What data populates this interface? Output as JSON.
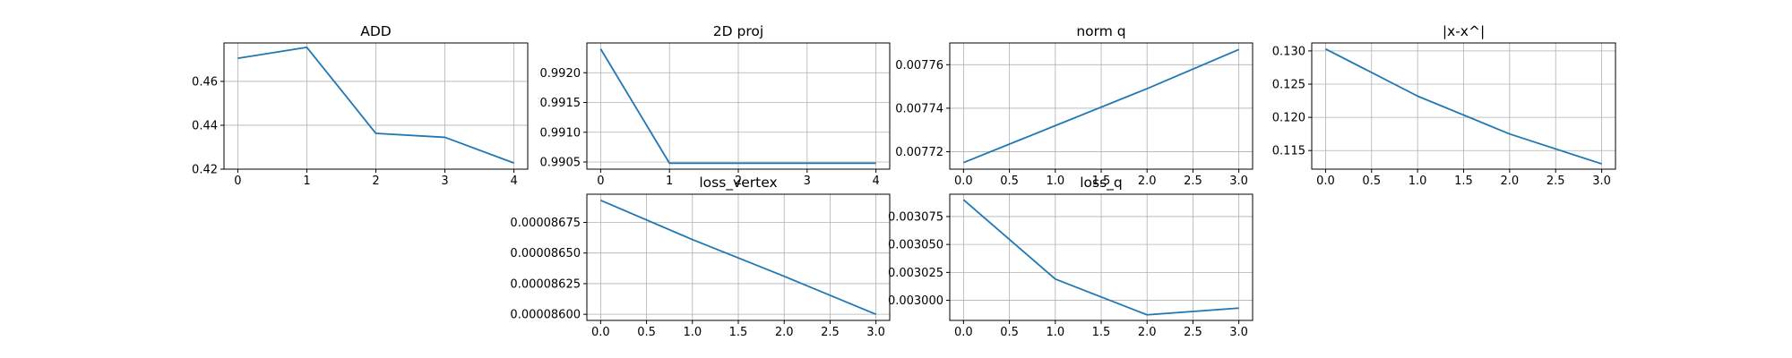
{
  "chart_data": [
    {
      "type": "line",
      "title": "ADD",
      "xlabel": "",
      "ylabel": "",
      "x": [
        0,
        1,
        2,
        3,
        4
      ],
      "series": [
        {
          "values": [
            0.4705,
            0.4755,
            0.4363,
            0.4345,
            0.4228
          ]
        }
      ],
      "xlim": [
        -0.2,
        4.2
      ],
      "ylim": [
        0.42,
        0.4775
      ],
      "xticks": [
        0,
        1,
        2,
        3,
        4
      ],
      "xtick_labels": [
        "0",
        "1",
        "2",
        "3",
        "4"
      ],
      "yticks": [
        0.42,
        0.44,
        0.46
      ],
      "ytick_labels": [
        "0.42",
        "0.44",
        "0.46"
      ],
      "grid": true,
      "line_color": "#1f77b4"
    },
    {
      "type": "line",
      "title": "2D proj",
      "xlabel": "",
      "ylabel": "",
      "x": [
        0,
        1,
        2,
        3,
        4
      ],
      "series": [
        {
          "values": [
            0.9924,
            0.99048,
            0.99048,
            0.99048,
            0.99048
          ]
        }
      ],
      "xlim": [
        -0.2,
        4.2
      ],
      "ylim": [
        0.99038,
        0.9925
      ],
      "xticks": [
        0,
        1,
        2,
        3,
        4
      ],
      "xtick_labels": [
        "0",
        "1",
        "2",
        "3",
        "4"
      ],
      "yticks": [
        0.9905,
        0.991,
        0.9915,
        0.992
      ],
      "ytick_labels": [
        "0.9905",
        "0.9910",
        "0.9915",
        "0.9920"
      ],
      "grid": true,
      "line_color": "#1f77b4"
    },
    {
      "type": "line",
      "title": "norm q",
      "xlabel": "",
      "ylabel": "",
      "x": [
        0,
        1,
        2,
        3
      ],
      "series": [
        {
          "values": [
            0.007715,
            0.007732,
            0.007749,
            0.007767
          ]
        }
      ],
      "xlim": [
        -0.15,
        3.15
      ],
      "ylim": [
        0.007712,
        0.00777
      ],
      "xticks": [
        0,
        0.5,
        1,
        1.5,
        2,
        2.5,
        3
      ],
      "xtick_labels": [
        "0.0",
        "0.5",
        "1.0",
        "1.5",
        "2.0",
        "2.5",
        "3.0"
      ],
      "yticks": [
        0.00772,
        0.00774,
        0.00776
      ],
      "ytick_labels": [
        "0.00772",
        "0.00774",
        "0.00776"
      ],
      "grid": true,
      "line_color": "#1f77b4"
    },
    {
      "type": "line",
      "title": "|x-x^|",
      "xlabel": "",
      "ylabel": "",
      "x": [
        0,
        1,
        2,
        3
      ],
      "series": [
        {
          "values": [
            0.1303,
            0.1232,
            0.1175,
            0.113
          ]
        }
      ],
      "xlim": [
        -0.15,
        3.15
      ],
      "ylim": [
        0.1122,
        0.1312
      ],
      "xticks": [
        0,
        0.5,
        1,
        1.5,
        2,
        2.5,
        3
      ],
      "xtick_labels": [
        "0.0",
        "0.5",
        "1.0",
        "1.5",
        "2.0",
        "2.5",
        "3.0"
      ],
      "yticks": [
        0.115,
        0.12,
        0.125,
        0.13
      ],
      "ytick_labels": [
        "0.115",
        "0.120",
        "0.125",
        "0.130"
      ],
      "grid": true,
      "line_color": "#1f77b4"
    },
    {
      "type": "line",
      "title": "loss_vertex",
      "xlabel": "",
      "ylabel": "",
      "x": [
        0,
        1,
        2,
        3
      ],
      "series": [
        {
          "values": [
            8.693e-05,
            8.661e-05,
            8.631e-05,
            8.6e-05
          ]
        }
      ],
      "xlim": [
        -0.15,
        3.15
      ],
      "ylim": [
        8.595e-05,
        8.698e-05
      ],
      "xticks": [
        0,
        0.5,
        1,
        1.5,
        2,
        2.5,
        3
      ],
      "xtick_labels": [
        "0.0",
        "0.5",
        "1.0",
        "1.5",
        "2.0",
        "2.5",
        "3.0"
      ],
      "yticks": [
        8.6e-05,
        8.625e-05,
        8.65e-05,
        8.675e-05
      ],
      "ytick_labels": [
        "0.00008600",
        "0.00008625",
        "0.00008650",
        "0.00008675"
      ],
      "grid": true,
      "line_color": "#1f77b4"
    },
    {
      "type": "line",
      "title": "loss_q",
      "xlabel": "",
      "ylabel": "",
      "x": [
        0,
        1,
        2,
        3
      ],
      "series": [
        {
          "values": [
            0.00309,
            0.003019,
            0.002987,
            0.002993
          ]
        }
      ],
      "xlim": [
        -0.15,
        3.15
      ],
      "ylim": [
        0.002982,
        0.003095
      ],
      "xticks": [
        0,
        0.5,
        1,
        1.5,
        2,
        2.5,
        3
      ],
      "xtick_labels": [
        "0.0",
        "0.5",
        "1.0",
        "1.5",
        "2.0",
        "2.5",
        "3.0"
      ],
      "yticks": [
        0.003,
        0.003025,
        0.00305,
        0.003075
      ],
      "ytick_labels": [
        "0.003000",
        "0.003025",
        "0.003050",
        "0.003075"
      ],
      "grid": true,
      "line_color": "#1f77b4"
    }
  ]
}
